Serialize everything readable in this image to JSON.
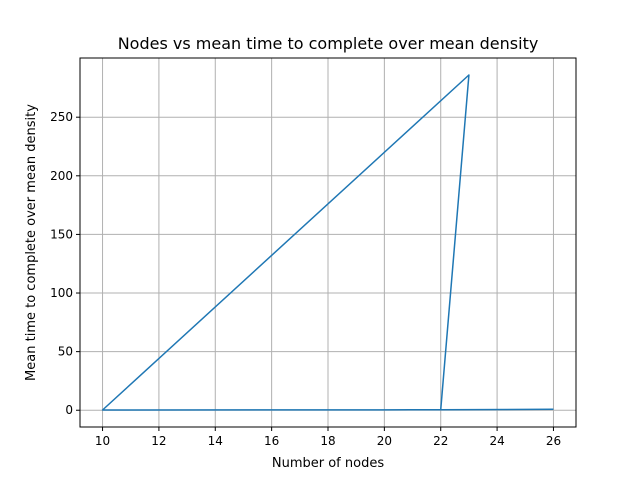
{
  "chart_data": {
    "type": "line",
    "title": "Nodes vs mean time to complete over mean density",
    "xlabel": "Number of nodes",
    "ylabel": "Mean time to complete over mean density",
    "xlim": [
      9.2,
      26.8
    ],
    "ylim": [
      -14.3,
      300.5
    ],
    "x_ticks": [
      10,
      12,
      14,
      16,
      18,
      20,
      22,
      24,
      26
    ],
    "y_ticks": [
      0,
      50,
      100,
      150,
      200,
      250
    ],
    "grid": true,
    "series": [
      {
        "color": "#1f77b4",
        "x": [
          23,
          10,
          19,
          22,
          23,
          22,
          26
        ],
        "y": [
          286,
          0.2,
          0.3,
          0.5,
          286,
          0.4,
          0.8
        ]
      }
    ]
  }
}
